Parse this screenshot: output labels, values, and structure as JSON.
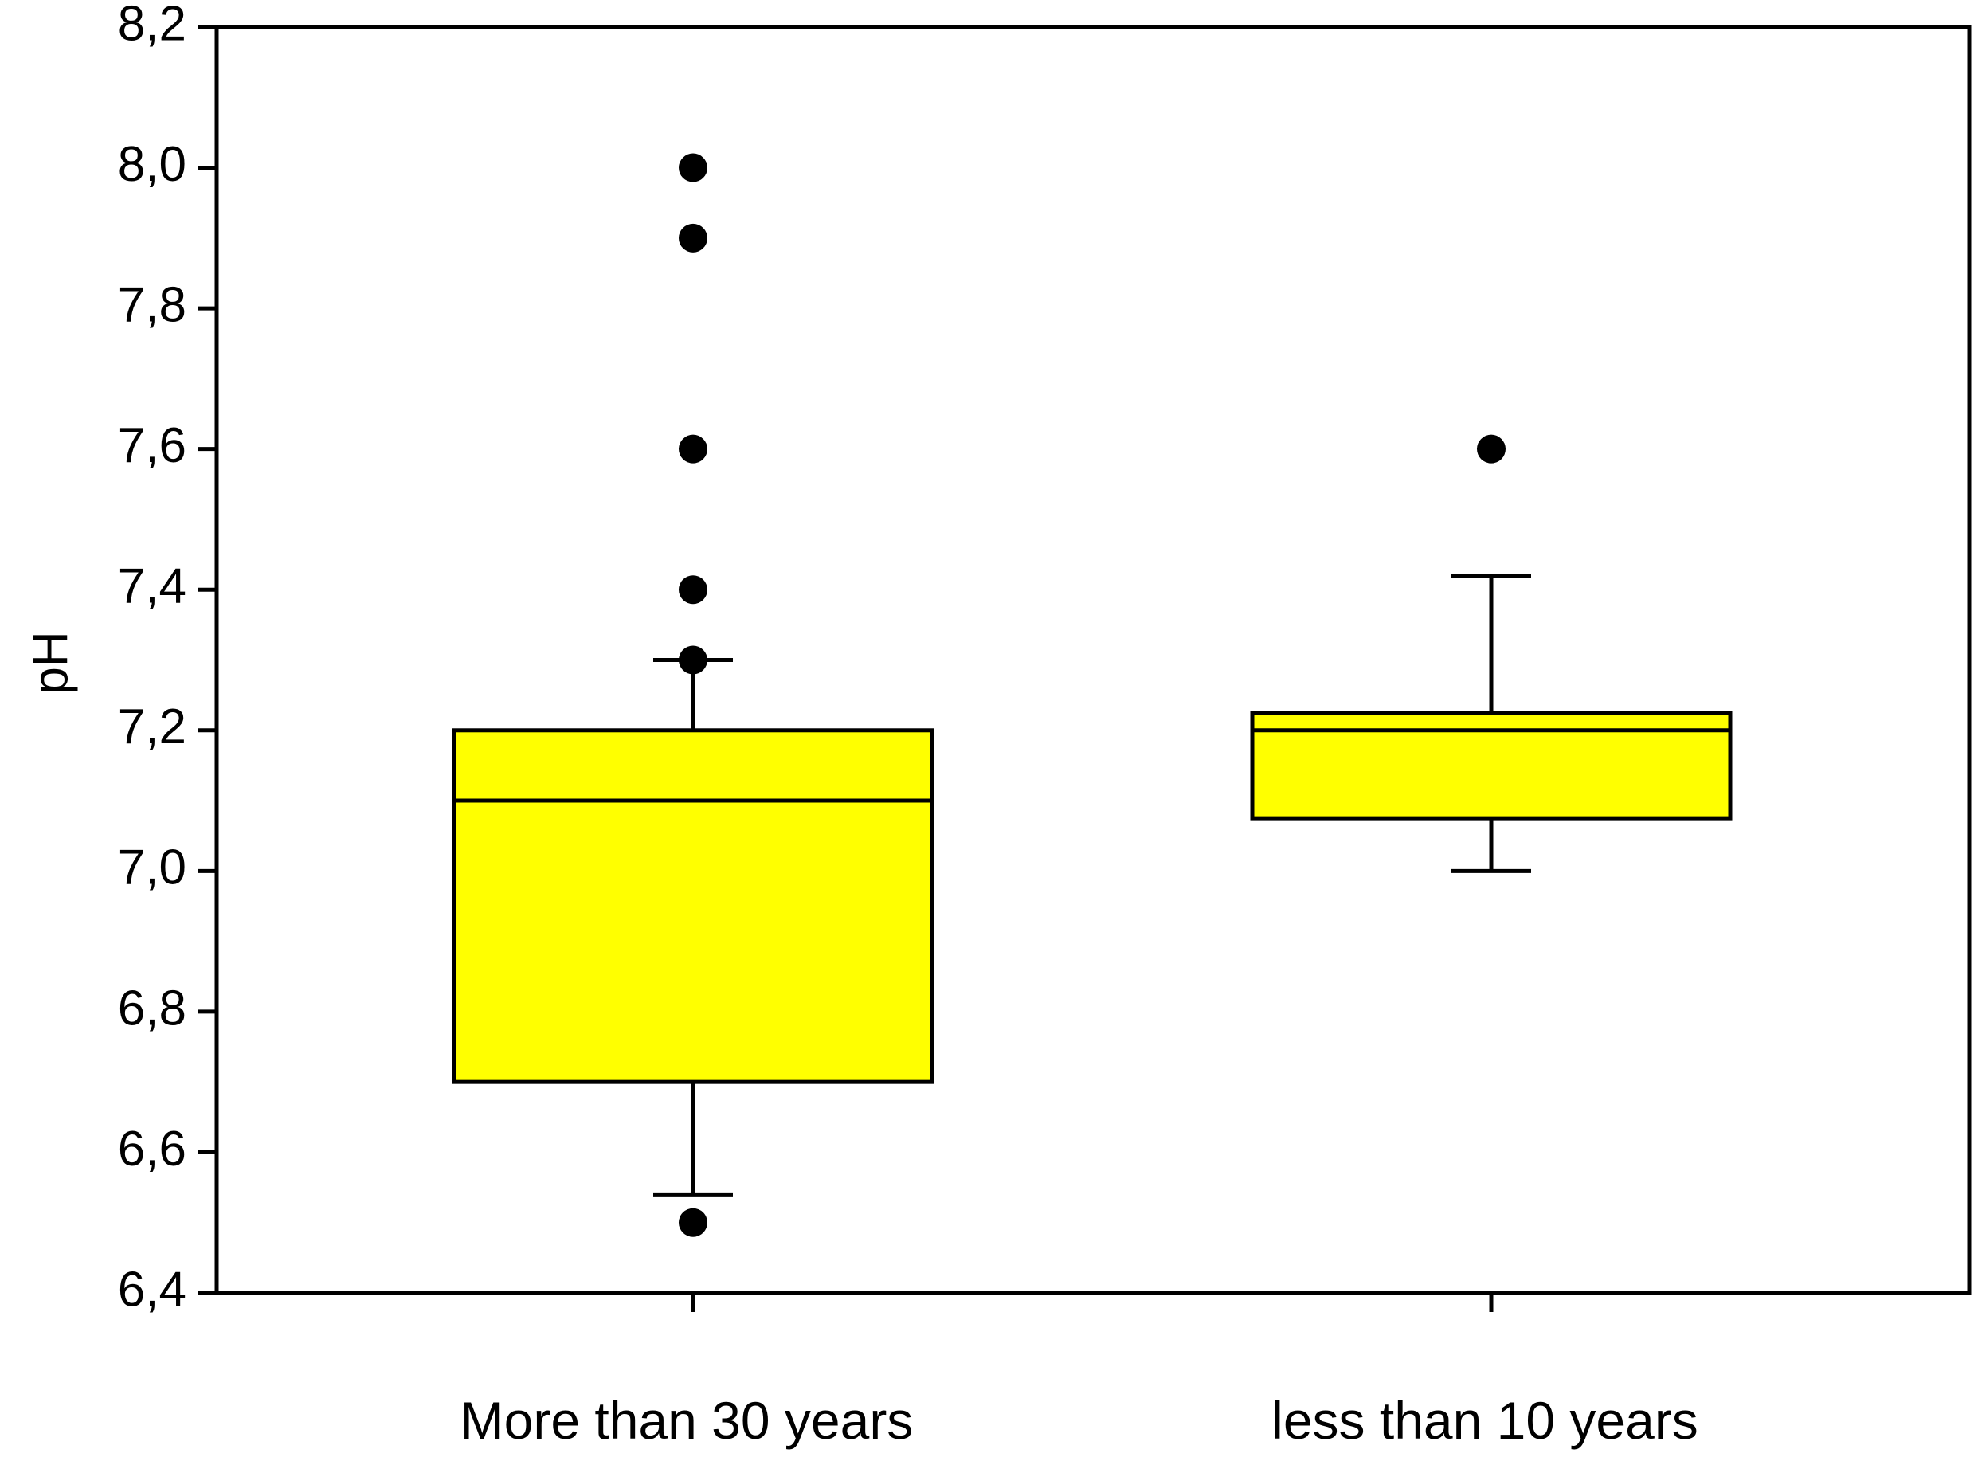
{
  "chart_data": {
    "type": "box",
    "title": "",
    "xlabel": "",
    "ylabel": "pH",
    "ylim": [
      6.4,
      8.2
    ],
    "yticks": [
      "6,4",
      "6,6",
      "6,8",
      "7,0",
      "7,2",
      "7,4",
      "7,6",
      "7,8",
      "8,0",
      "8,2"
    ],
    "ytick_values": [
      6.4,
      6.6,
      6.8,
      7.0,
      7.2,
      7.4,
      7.6,
      7.8,
      8.0,
      8.2
    ],
    "grid": false,
    "legend": "none",
    "box_fill": "#ffff00",
    "categories": [
      "More than 30 years",
      "less than 10 years"
    ],
    "boxes": [
      {
        "category": "More than 30 years",
        "whisker_low": 6.54,
        "q1": 6.7,
        "median": 7.1,
        "q3": 7.2,
        "whisker_high": 7.3,
        "outliers": [
          6.5,
          7.3,
          7.4,
          7.6,
          7.9,
          8.0
        ]
      },
      {
        "category": "less than 10 years",
        "whisker_low": 7.0,
        "q1": 7.075,
        "median": 7.2,
        "q3": 7.225,
        "whisker_high": 7.42,
        "outliers": [
          7.6
        ]
      }
    ]
  }
}
